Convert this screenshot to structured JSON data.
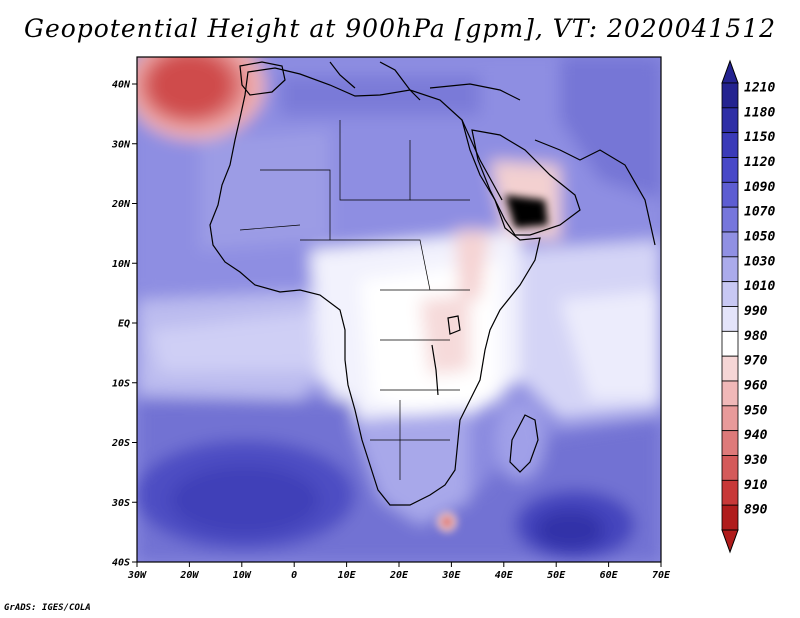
{
  "title": "Geopotential Height at 900hPa [gpm], VT: 2020041512",
  "footer": "GrADS: IGES/COLA",
  "lon_labels": [
    "30W",
    "20W",
    "10W",
    "0",
    "10E",
    "20E",
    "30E",
    "40E",
    "50E",
    "60E",
    "70E"
  ],
  "lat_labels": [
    "40N",
    "30N",
    "20N",
    "10N",
    "EQ",
    "10S",
    "20S",
    "30S",
    "40S"
  ],
  "colorbar": {
    "levels": [
      "1210",
      "1180",
      "1150",
      "1120",
      "1090",
      "1070",
      "1050",
      "1030",
      "1010",
      "990",
      "980",
      "970",
      "960",
      "950",
      "940",
      "930",
      "910",
      "890"
    ],
    "colors": [
      "#242390",
      "#2e2ea6",
      "#3a3ab8",
      "#4848c8",
      "#5d5dd2",
      "#7676dc",
      "#9090e3",
      "#ababeb",
      "#c8c8f3",
      "#e4e4fa",
      "#ffffff",
      "#f6d6d6",
      "#f0b8b8",
      "#e89a9a",
      "#de7a7a",
      "#d45a5a",
      "#c83838",
      "#b01c1c"
    ]
  },
  "colors": {
    "ocean_base": "#8a8adf",
    "land_base": "#d8d8f6",
    "coast": "#000000"
  }
}
